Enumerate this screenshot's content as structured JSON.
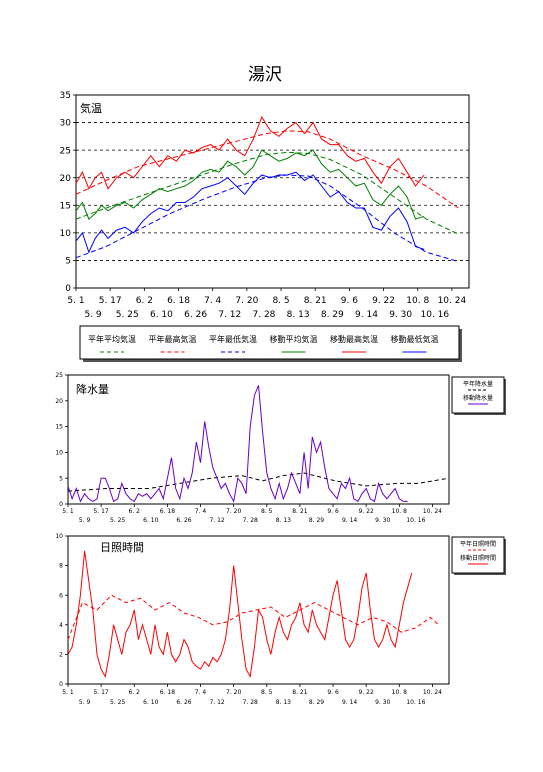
{
  "title": "湯沢",
  "chart_data": [
    {
      "type": "line",
      "ylabel": "気温",
      "ylim": [
        0,
        35
      ],
      "yticks": [
        0,
        5,
        10,
        15,
        20,
        25,
        30,
        35
      ],
      "xlim_day": [
        121,
        305
      ],
      "xticks_upper": [
        "5. 1",
        "5. 17",
        "6. 2",
        "6. 18",
        "7. 4",
        "7. 20",
        "8. 5",
        "8. 21",
        "9. 6",
        "9. 22",
        "10. 8",
        "10. 24"
      ],
      "xticks_lower": [
        "5. 9",
        "5. 25",
        "6. 10",
        "6. 26",
        "7. 12",
        "7. 28",
        "8. 13",
        "8. 29",
        "9. 14",
        "9. 30",
        "10. 16"
      ],
      "grid": "horizontal dashed",
      "legend_position": "bottom",
      "legend": [
        "平年平均気温",
        "平年最高気温",
        "平年最低気温",
        "移動平均気温",
        "移動最高気温",
        "移動最低気温"
      ],
      "colors": {
        "mean": "#008000",
        "max": "#ff0000",
        "min": "#0000ff"
      },
      "series": {
        "normal_mean": {
          "x": [
            121,
            135,
            150,
            165,
            180,
            195,
            210,
            220,
            230,
            240,
            255,
            270,
            285,
            300
          ],
          "y": [
            12.5,
            14.5,
            16.5,
            18.5,
            20.5,
            22.5,
            24.2,
            24.6,
            24.4,
            23.3,
            20.5,
            16.5,
            12.5,
            9.8
          ]
        },
        "normal_max": {
          "x": [
            121,
            135,
            150,
            165,
            180,
            195,
            210,
            220,
            230,
            240,
            255,
            270,
            285,
            300
          ],
          "y": [
            17.0,
            19.5,
            22.0,
            23.5,
            25.0,
            26.5,
            28.0,
            28.5,
            28.3,
            27.0,
            24.0,
            21.5,
            18.5,
            14.5
          ]
        },
        "normal_min": {
          "x": [
            121,
            135,
            150,
            165,
            180,
            195,
            210,
            220,
            230,
            240,
            255,
            270,
            285,
            300
          ],
          "y": [
            5.5,
            7.5,
            10.5,
            13.5,
            16.0,
            18.2,
            20.0,
            20.5,
            20.3,
            18.5,
            14.5,
            10.0,
            6.5,
            4.8
          ]
        },
        "moving_mean": {
          "x": [
            121,
            124,
            127,
            130,
            133,
            136,
            140,
            144,
            148,
            152,
            156,
            160,
            164,
            168,
            172,
            176,
            180,
            184,
            188,
            192,
            196,
            200,
            204,
            208,
            212,
            216,
            220,
            224,
            228,
            232,
            236,
            240,
            244,
            248,
            252,
            256,
            260,
            264,
            268,
            272,
            276,
            280,
            284
          ],
          "y": [
            14,
            15.5,
            12.5,
            13.5,
            15,
            14,
            15,
            15.5,
            14.5,
            16,
            17,
            18,
            17.5,
            18,
            18.5,
            19.5,
            21,
            21.5,
            21,
            23,
            22,
            20.5,
            22,
            25,
            24,
            23,
            23.5,
            24.5,
            24,
            25,
            22.5,
            21,
            21.5,
            20,
            18.5,
            19,
            16,
            15,
            17,
            18.5,
            16.5,
            12.5,
            13
          ]
        },
        "moving_max": {
          "x": [
            121,
            124,
            127,
            130,
            133,
            136,
            140,
            144,
            148,
            152,
            156,
            160,
            164,
            168,
            172,
            176,
            180,
            184,
            188,
            192,
            196,
            200,
            204,
            208,
            212,
            216,
            220,
            224,
            228,
            232,
            236,
            240,
            244,
            248,
            252,
            256,
            260,
            264,
            268,
            272,
            276,
            280,
            284
          ],
          "y": [
            19,
            21,
            18,
            20,
            21,
            18,
            20,
            21,
            20,
            22,
            24,
            22,
            24,
            23,
            25,
            24.5,
            25.5,
            26,
            25,
            27,
            25,
            24,
            27,
            31,
            28.5,
            27.5,
            29,
            30,
            28,
            30,
            27,
            26,
            26,
            24,
            23,
            23.5,
            21,
            19,
            22,
            23.5,
            21,
            18.5,
            20.5
          ]
        },
        "moving_min": {
          "x": [
            121,
            124,
            127,
            130,
            133,
            136,
            140,
            144,
            148,
            152,
            156,
            160,
            164,
            168,
            172,
            176,
            180,
            184,
            188,
            192,
            196,
            200,
            204,
            208,
            212,
            216,
            220,
            224,
            228,
            232,
            236,
            240,
            244,
            248,
            252,
            256,
            260,
            264,
            268,
            272,
            276,
            280,
            284
          ],
          "y": [
            8.5,
            10,
            6.5,
            9,
            10.5,
            9,
            10.5,
            11,
            10,
            12,
            13.5,
            14.5,
            14,
            15.5,
            15.5,
            16.5,
            18,
            18.5,
            19,
            20,
            18.5,
            17,
            19,
            20.5,
            20,
            20.5,
            20.5,
            21,
            19.5,
            20.5,
            18.5,
            16.5,
            17.5,
            15.5,
            14.5,
            14.5,
            11,
            10.5,
            13,
            14.5,
            12,
            7.5,
            7
          ]
        }
      }
    },
    {
      "type": "line",
      "ylabel": "降水量",
      "ylim": [
        0,
        25
      ],
      "yticks": [
        0,
        5,
        10,
        15,
        20,
        25
      ],
      "xlim_day": [
        121,
        305
      ],
      "xticks_upper": [
        "5. 1",
        "5. 17",
        "6. 2",
        "6. 18",
        "7. 4",
        "7. 20",
        "8. 5",
        "8. 21",
        "9. 6",
        "9. 22",
        "10. 8",
        "10. 24"
      ],
      "xticks_lower": [
        "5. 9",
        "5. 25",
        "6. 10",
        "6. 26",
        "7. 12",
        "7. 28",
        "8. 13",
        "8. 29",
        "9. 14",
        "9. 30",
        "10. 16"
      ],
      "legend": [
        "平年降水量",
        "移動降水量"
      ],
      "legend_position": "right",
      "colors": {
        "normal": "#000000",
        "moving": "#6600cc"
      },
      "series": {
        "normal": {
          "x": [
            121,
            140,
            160,
            175,
            190,
            205,
            215,
            225,
            235,
            250,
            265,
            280,
            290,
            305
          ],
          "y": [
            2.5,
            3,
            3,
            4,
            5,
            5.5,
            4.5,
            5.5,
            6,
            4.5,
            3.5,
            4,
            4,
            5
          ]
        },
        "moving": {
          "x": [
            121,
            123,
            125,
            127,
            129,
            131,
            133,
            135,
            137,
            139,
            141,
            143,
            145,
            147,
            149,
            151,
            153,
            155,
            157,
            159,
            161,
            163,
            165,
            167,
            169,
            171,
            173,
            175,
            177,
            179,
            181,
            183,
            185,
            187,
            189,
            191,
            193,
            195,
            197,
            199,
            201,
            203,
            205,
            207,
            209,
            211,
            213,
            215,
            217,
            219,
            221,
            223,
            225,
            227,
            229,
            231,
            233,
            235,
            237,
            239,
            241,
            243,
            245,
            247,
            249,
            251,
            253,
            255,
            257,
            259,
            261,
            263,
            265,
            267,
            269,
            271,
            273,
            275,
            277,
            279,
            281,
            283,
            285
          ],
          "y": [
            3.5,
            1,
            3,
            0.5,
            2,
            1,
            0.5,
            1,
            5,
            5,
            3,
            0.5,
            1,
            4,
            2,
            1,
            0.5,
            2,
            1.5,
            2,
            1,
            2,
            3,
            1,
            5,
            9,
            3,
            1,
            5,
            3,
            6,
            12,
            8,
            16,
            11,
            7,
            5,
            3,
            4,
            2,
            0.5,
            5,
            4,
            2,
            15,
            21,
            23,
            14,
            6,
            3,
            1,
            4,
            1,
            3,
            6,
            4,
            2,
            10,
            3,
            13,
            10,
            12,
            7,
            3,
            2,
            1,
            4,
            3,
            5,
            1,
            0.5,
            2,
            3,
            1,
            0.5,
            4,
            2,
            1,
            2,
            3,
            1,
            0.5,
            0.5
          ]
        }
      }
    },
    {
      "type": "line",
      "ylabel": "日照時間",
      "ylim": [
        0,
        10
      ],
      "yticks": [
        0,
        2,
        4,
        6,
        8,
        10
      ],
      "xlim_day": [
        121,
        305
      ],
      "xticks_upper": [
        "5. 1",
        "5. 17",
        "6. 2",
        "6. 18",
        "7. 4",
        "7. 20",
        "8. 5",
        "8. 21",
        "9. 6",
        "9. 22",
        "10. 8",
        "10. 24"
      ],
      "xticks_lower": [
        "5. 9",
        "5. 25",
        "6. 10",
        "6. 26",
        "7. 12",
        "7. 28",
        "8. 13",
        "8. 29",
        "9. 14",
        "9. 30",
        "10. 16"
      ],
      "legend": [
        "平年日照時間",
        "移動日照時間"
      ],
      "legend_position": "right",
      "colors": {
        "normal": "#ff0000",
        "moving": "#ff0000"
      },
      "series": {
        "normal": {
          "x": [
            121,
            128,
            135,
            142,
            149,
            156,
            163,
            170,
            177,
            184,
            191,
            198,
            205,
            212,
            219,
            226,
            233,
            240,
            247,
            254,
            261,
            268,
            275,
            282,
            289,
            296,
            300
          ],
          "y": [
            3,
            5.5,
            5,
            6,
            5.5,
            5.8,
            5,
            5.5,
            4.8,
            4.5,
            4,
            4.2,
            4.8,
            5,
            5.2,
            4.5,
            5,
            5.5,
            5,
            4.5,
            4,
            4.5,
            4.2,
            3.5,
            3.8,
            4.5,
            4
          ]
        },
        "moving": {
          "x": [
            121,
            123,
            125,
            127,
            129,
            131,
            133,
            135,
            137,
            139,
            141,
            143,
            145,
            147,
            149,
            151,
            153,
            155,
            157,
            159,
            161,
            163,
            165,
            167,
            169,
            171,
            173,
            175,
            177,
            179,
            181,
            183,
            185,
            187,
            189,
            191,
            193,
            195,
            197,
            199,
            201,
            203,
            205,
            207,
            209,
            211,
            213,
            215,
            217,
            219,
            221,
            223,
            225,
            227,
            229,
            231,
            233,
            235,
            237,
            239,
            241,
            243,
            245,
            247,
            249,
            251,
            253,
            255,
            257,
            259,
            261,
            263,
            265,
            267,
            269,
            271,
            273,
            275,
            277,
            279,
            281,
            283,
            285,
            287
          ],
          "y": [
            2,
            2.5,
            4,
            6,
            9,
            7,
            5,
            2,
            1,
            0.5,
            2,
            4,
            3,
            2,
            3.5,
            4,
            5,
            3,
            4,
            3,
            2,
            4,
            2.5,
            2,
            3.5,
            2,
            1.5,
            2,
            3,
            2.5,
            1.5,
            1.2,
            1,
            1.5,
            1.2,
            1.8,
            1.5,
            2,
            3,
            5,
            8,
            5.5,
            3,
            1,
            0.5,
            2.5,
            5,
            4.5,
            3,
            2,
            3.5,
            4.5,
            3.5,
            3,
            4,
            4.5,
            5.5,
            4,
            3.5,
            5,
            4,
            3.5,
            3,
            4.5,
            6,
            7,
            5,
            3,
            2.5,
            3,
            4.5,
            6.5,
            7.5,
            5,
            3,
            2.5,
            3,
            4,
            3,
            2.5,
            4,
            5.5,
            6.5,
            7.5
          ]
        }
      }
    }
  ]
}
